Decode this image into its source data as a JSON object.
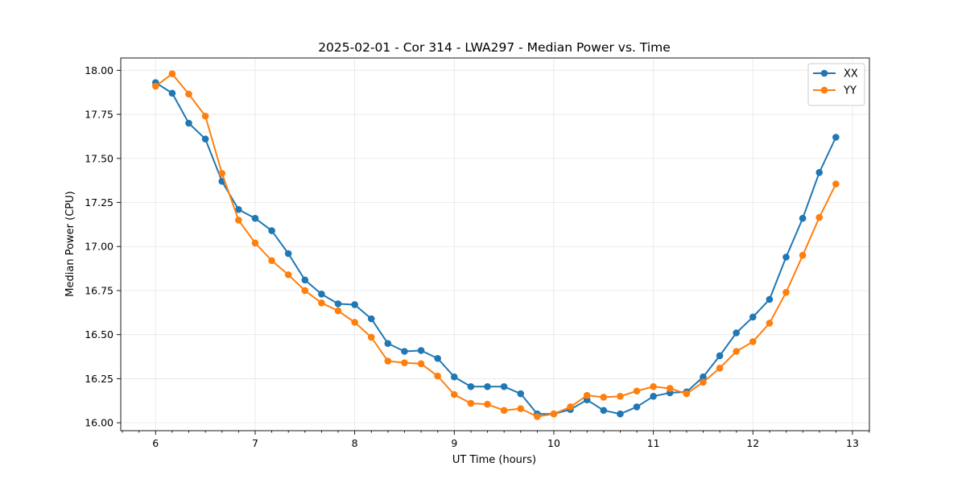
{
  "chart_data": {
    "type": "line",
    "title": "2025-02-01 - Cor 314 - LWA297 - Median Power vs. Time",
    "xlabel": "UT Time (hours)",
    "ylabel": "Median Power (CPU)",
    "xlim": [
      5.65,
      13.17
    ],
    "ylim": [
      15.955,
      18.07
    ],
    "x_ticks": [
      6,
      7,
      8,
      9,
      10,
      11,
      12,
      13
    ],
    "x_tick_labels": [
      "6",
      "7",
      "8",
      "9",
      "10",
      "11",
      "12",
      "13"
    ],
    "x_minor_step": 0.1667,
    "y_ticks": [
      16.0,
      16.25,
      16.5,
      16.75,
      17.0,
      17.25,
      17.5,
      17.75,
      18.0
    ],
    "y_tick_labels": [
      "16.00",
      "16.25",
      "16.50",
      "16.75",
      "17.00",
      "17.25",
      "17.50",
      "17.75",
      "18.00"
    ],
    "grid": true,
    "legend_position": "top-right",
    "x": [
      6.0,
      6.1667,
      6.3333,
      6.5,
      6.6667,
      6.8333,
      7.0,
      7.1667,
      7.3333,
      7.5,
      7.6667,
      7.8333,
      8.0,
      8.1667,
      8.3333,
      8.5,
      8.6667,
      8.8333,
      9.0,
      9.1667,
      9.3333,
      9.5,
      9.6667,
      9.8333,
      10.0,
      10.1667,
      10.3333,
      10.5,
      10.6667,
      10.8333,
      11.0,
      11.1667,
      11.3333,
      11.5,
      11.6667,
      11.8333,
      12.0,
      12.1667,
      12.3333,
      12.5,
      12.6667,
      12.8333
    ],
    "series": [
      {
        "name": "XX",
        "color": "#1f77b4",
        "values": [
          17.93,
          17.87,
          17.7,
          17.61,
          17.37,
          17.21,
          17.16,
          17.09,
          16.96,
          16.81,
          16.73,
          16.675,
          16.67,
          16.59,
          16.45,
          16.405,
          16.41,
          16.365,
          16.26,
          16.205,
          16.205,
          16.205,
          16.165,
          16.05,
          16.05,
          16.075,
          16.13,
          16.07,
          16.05,
          16.09,
          16.15,
          16.17,
          16.175,
          16.26,
          16.38,
          16.51,
          16.6,
          16.7,
          16.94,
          17.16,
          17.42,
          17.62
        ]
      },
      {
        "name": "YY",
        "color": "#ff7f0e",
        "values": [
          17.91,
          17.98,
          17.865,
          17.74,
          17.415,
          17.15,
          17.02,
          16.92,
          16.84,
          16.75,
          16.68,
          16.635,
          16.57,
          16.485,
          16.35,
          16.34,
          16.335,
          16.265,
          16.16,
          16.11,
          16.105,
          16.07,
          16.08,
          16.035,
          16.05,
          16.09,
          16.155,
          16.145,
          16.15,
          16.18,
          16.205,
          16.195,
          16.165,
          16.23,
          16.31,
          16.405,
          16.46,
          16.565,
          16.74,
          16.95,
          17.165,
          17.355
        ]
      }
    ]
  }
}
